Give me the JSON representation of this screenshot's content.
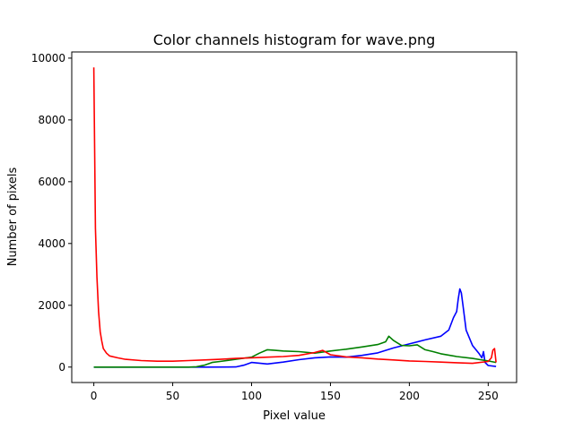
{
  "chart_data": {
    "type": "line",
    "title": "Color channels histogram for wave.png",
    "xlabel": "Pixel value",
    "ylabel": "Number of pixels",
    "xlim": [
      -14,
      268
    ],
    "ylim": [
      -500,
      10200
    ],
    "xticks": [
      0,
      50,
      100,
      150,
      200,
      250
    ],
    "yticks": [
      0,
      2000,
      4000,
      6000,
      8000,
      10000
    ],
    "grid": false,
    "legend": "none",
    "series": [
      {
        "color": "#0000ff",
        "points": [
          [
            0,
            0
          ],
          [
            70,
            0
          ],
          [
            90,
            5
          ],
          [
            95,
            60
          ],
          [
            100,
            150
          ],
          [
            110,
            100
          ],
          [
            120,
            160
          ],
          [
            130,
            240
          ],
          [
            140,
            300
          ],
          [
            150,
            330
          ],
          [
            160,
            320
          ],
          [
            170,
            380
          ],
          [
            180,
            460
          ],
          [
            190,
            620
          ],
          [
            200,
            750
          ],
          [
            210,
            880
          ],
          [
            220,
            1000
          ],
          [
            225,
            1200
          ],
          [
            228,
            1600
          ],
          [
            230,
            1800
          ],
          [
            231,
            2200
          ],
          [
            232,
            2530
          ],
          [
            233,
            2400
          ],
          [
            234,
            2000
          ],
          [
            236,
            1200
          ],
          [
            240,
            700
          ],
          [
            244,
            450
          ],
          [
            246,
            300
          ],
          [
            247,
            500
          ],
          [
            248,
            150
          ],
          [
            250,
            50
          ],
          [
            255,
            20
          ]
        ]
      },
      {
        "color": "#008000",
        "points": [
          [
            0,
            0
          ],
          [
            60,
            0
          ],
          [
            65,
            10
          ],
          [
            70,
            60
          ],
          [
            75,
            150
          ],
          [
            80,
            180
          ],
          [
            90,
            250
          ],
          [
            100,
            320
          ],
          [
            105,
            450
          ],
          [
            110,
            560
          ],
          [
            115,
            540
          ],
          [
            120,
            520
          ],
          [
            130,
            500
          ],
          [
            140,
            450
          ],
          [
            150,
            520
          ],
          [
            160,
            580
          ],
          [
            170,
            650
          ],
          [
            180,
            730
          ],
          [
            185,
            820
          ],
          [
            187,
            1000
          ],
          [
            190,
            860
          ],
          [
            195,
            700
          ],
          [
            200,
            690
          ],
          [
            205,
            720
          ],
          [
            210,
            560
          ],
          [
            215,
            500
          ],
          [
            220,
            430
          ],
          [
            230,
            340
          ],
          [
            240,
            280
          ],
          [
            245,
            240
          ],
          [
            250,
            200
          ],
          [
            255,
            150
          ]
        ]
      },
      {
        "color": "#ff0000",
        "points": [
          [
            0,
            9700
          ],
          [
            1,
            4500
          ],
          [
            2,
            2900
          ],
          [
            3,
            1800
          ],
          [
            4,
            1150
          ],
          [
            5,
            850
          ],
          [
            6,
            600
          ],
          [
            8,
            450
          ],
          [
            10,
            360
          ],
          [
            15,
            300
          ],
          [
            20,
            250
          ],
          [
            30,
            210
          ],
          [
            40,
            190
          ],
          [
            50,
            190
          ],
          [
            60,
            210
          ],
          [
            70,
            230
          ],
          [
            80,
            250
          ],
          [
            90,
            280
          ],
          [
            100,
            300
          ],
          [
            110,
            320
          ],
          [
            120,
            340
          ],
          [
            130,
            380
          ],
          [
            140,
            470
          ],
          [
            145,
            540
          ],
          [
            150,
            400
          ],
          [
            160,
            330
          ],
          [
            170,
            300
          ],
          [
            180,
            260
          ],
          [
            190,
            230
          ],
          [
            200,
            200
          ],
          [
            210,
            180
          ],
          [
            220,
            160
          ],
          [
            230,
            140
          ],
          [
            240,
            120
          ],
          [
            250,
            180
          ],
          [
            252,
            300
          ],
          [
            253,
            550
          ],
          [
            254,
            600
          ],
          [
            255,
            150
          ]
        ]
      }
    ]
  }
}
